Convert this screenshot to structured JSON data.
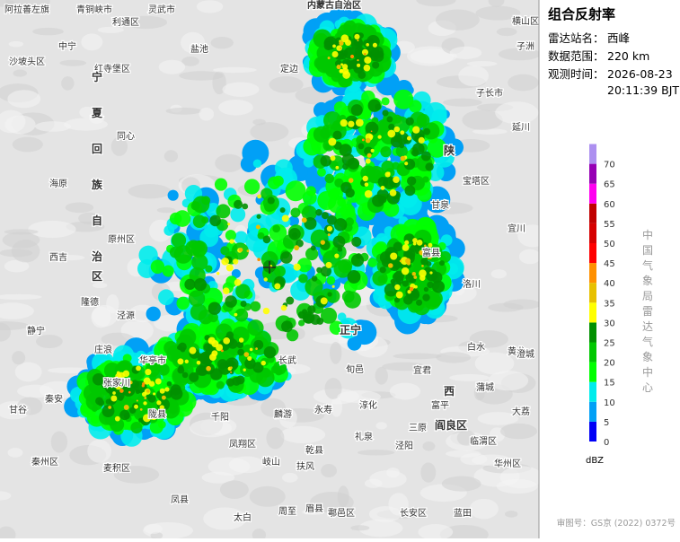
{
  "panel": {
    "title": "组合反射率",
    "station_label": "雷达站名：",
    "station": "西峰",
    "range_label": "数据范围：",
    "range": "220 km",
    "time_label": "观测时间：",
    "date": "2026-08-23",
    "time": "20:11:39 BJT",
    "org": "中国气象局雷达气象中心"
  },
  "legend": {
    "unit": "dBZ",
    "levels": [
      0,
      5,
      10,
      15,
      20,
      25,
      30,
      35,
      40,
      45,
      50,
      55,
      60,
      65,
      70
    ],
    "colors": [
      "#0000f6",
      "#01a0f6",
      "#00ecec",
      "#01ff00",
      "#00c800",
      "#019000",
      "#ffff00",
      "#e7c000",
      "#ff9000",
      "#ff0000",
      "#d60000",
      "#c00000",
      "#ff00f0",
      "#9600b4",
      "#ad90f0"
    ]
  },
  "map": {
    "labels": [
      "阿拉善左旗",
      "青铜峡市",
      "利通区",
      "灵武市",
      "内蒙古自治区",
      "横山区",
      "子洲",
      "中宁",
      "盐池",
      "沙坡头区",
      "红寺堡区",
      "定边",
      "子长市",
      "延川",
      "同心",
      "海原",
      "原州区",
      "西吉",
      "静宁",
      "隆德",
      "泾源",
      "华亭市",
      "庄浪",
      "张家川",
      "秦安",
      "甘谷",
      "秦州区",
      "麦积区",
      "凤县",
      "太白",
      "眉县",
      "岐山",
      "扶风",
      "凤翔区",
      "千阳",
      "陇县",
      "麟游",
      "永寿",
      "乾县",
      "礼泉",
      "淳化",
      "旬邑",
      "长武",
      "宜君",
      "富县",
      "洛川",
      "宜川",
      "甘泉",
      "宝塔区",
      "黄龙",
      "白水",
      "澄城",
      "蒲城",
      "富平",
      "大荔",
      "临渭区",
      "华州区",
      "长安区",
      "蓝田",
      "鄠邑区",
      "周至",
      "泾阳",
      "三原",
      "阎良区",
      "正宁",
      "陕",
      "西",
      "宁",
      "夏",
      "回",
      "族",
      "自",
      "治",
      "区"
    ]
  },
  "footer": {
    "approval": "审图号：GS京 (2022) 0372号"
  }
}
